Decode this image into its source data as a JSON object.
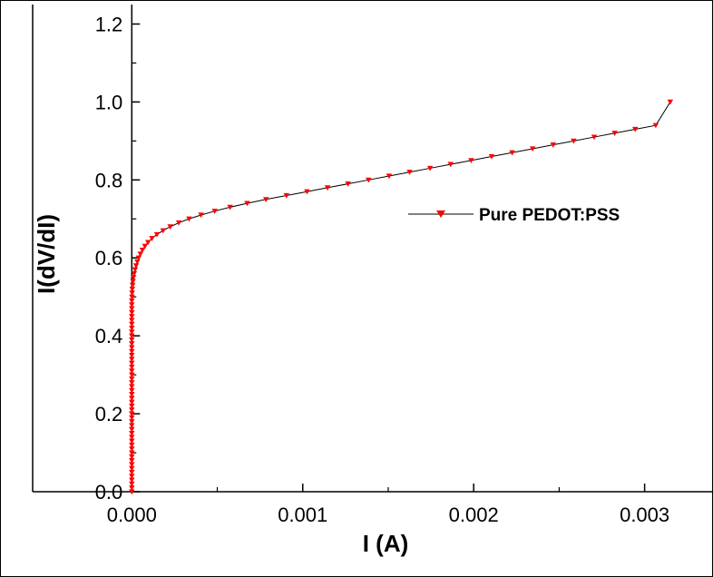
{
  "chart_data": {
    "type": "line",
    "xlabel": "I (A)",
    "ylabel": "I(dV/dI)",
    "xlim": [
      -0.00058,
      0.0034
    ],
    "ylim": [
      0.0,
      1.25
    ],
    "x_ticks": [
      0.0,
      0.001,
      0.002,
      0.003
    ],
    "x_tick_labels": [
      "0.000",
      "0.001",
      "0.002",
      "0.003"
    ],
    "y_ticks": [
      0.0,
      0.2,
      0.4,
      0.6,
      0.8,
      1.0,
      1.2
    ],
    "y_tick_labels": [
      "0.0",
      "0.2",
      "0.4",
      "0.6",
      "0.8",
      "1.0",
      "1.2"
    ],
    "grid": false,
    "legend_position": "center-right",
    "series": [
      {
        "name": "Pure PEDOT:PSS",
        "color": "#ff0000",
        "line_color": "#000000",
        "marker": "down-triangle",
        "x": [
          0.0,
          0.0,
          0.0,
          0.0,
          0.0,
          0.0,
          0.0,
          0.0,
          0.0,
          0.0,
          0.0,
          0.0,
          0.0,
          0.0,
          0.0,
          0.0,
          0.0,
          0.0,
          0.0,
          0.0,
          0.0,
          0.0,
          0.0,
          0.0,
          0.0,
          0.0,
          0.0,
          0.0,
          0.0,
          0.0,
          0.0,
          0.0,
          0.0,
          0.0,
          0.0,
          0.0,
          0.0,
          0.0,
          0.0,
          0.0,
          0.0,
          0.0,
          0.0,
          0.0,
          0.0,
          0.0,
          0.0,
          0.0,
          0.0,
          0.0,
          1e-06,
          2e-06,
          3e-06,
          5e-06,
          7e-06,
          1e-05,
          1.4e-05,
          1.9e-05,
          2.5e-05,
          3.2e-05,
          4e-05,
          5e-05,
          6.2e-05,
          7.7e-05,
          9.5e-05,
          0.000118,
          0.000147,
          0.000183,
          0.000225,
          0.000275,
          0.000335,
          0.000405,
          0.000485,
          0.000575,
          0.000675,
          0.000785,
          0.000905,
          0.001025,
          0.001145,
          0.001265,
          0.001385,
          0.001505,
          0.001625,
          0.001745,
          0.001865,
          0.001985,
          0.002105,
          0.002225,
          0.002345,
          0.002465,
          0.002585,
          0.002705,
          0.002825,
          0.002945,
          0.003065,
          0.00315
        ],
        "y": [
          0.0,
          0.01,
          0.02,
          0.03,
          0.04,
          0.05,
          0.06,
          0.07,
          0.08,
          0.09,
          0.1,
          0.11,
          0.12,
          0.13,
          0.14,
          0.15,
          0.16,
          0.17,
          0.18,
          0.19,
          0.2,
          0.21,
          0.22,
          0.23,
          0.24,
          0.25,
          0.26,
          0.27,
          0.28,
          0.29,
          0.3,
          0.31,
          0.32,
          0.33,
          0.34,
          0.35,
          0.36,
          0.37,
          0.38,
          0.39,
          0.4,
          0.41,
          0.42,
          0.43,
          0.44,
          0.45,
          0.46,
          0.47,
          0.48,
          0.49,
          0.5,
          0.51,
          0.52,
          0.53,
          0.54,
          0.55,
          0.56,
          0.57,
          0.58,
          0.59,
          0.6,
          0.61,
          0.62,
          0.63,
          0.64,
          0.65,
          0.66,
          0.67,
          0.68,
          0.69,
          0.7,
          0.71,
          0.72,
          0.73,
          0.74,
          0.75,
          0.76,
          0.77,
          0.78,
          0.79,
          0.8,
          0.81,
          0.82,
          0.83,
          0.84,
          0.85,
          0.86,
          0.87,
          0.88,
          0.89,
          0.9,
          0.91,
          0.92,
          0.93,
          0.94,
          1.0
        ]
      }
    ]
  }
}
